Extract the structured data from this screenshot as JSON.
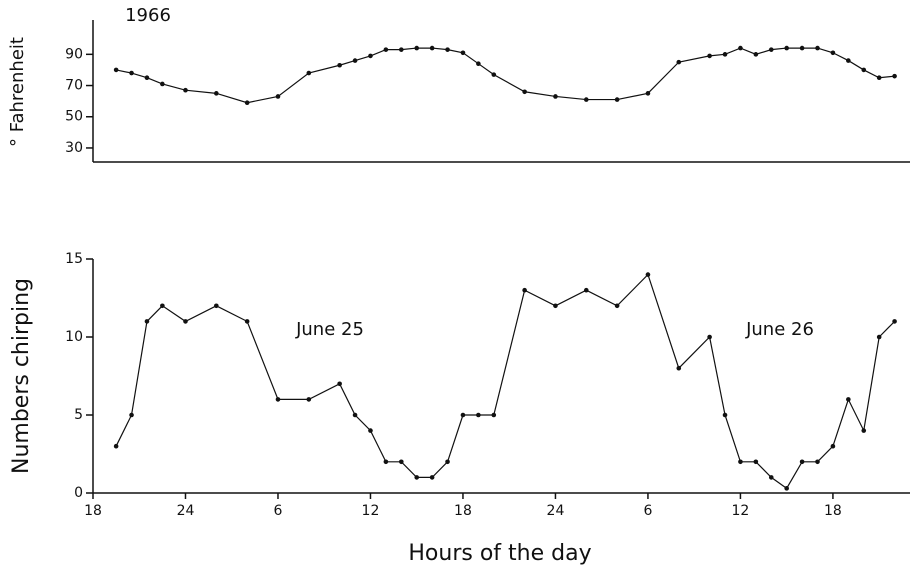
{
  "chart_data": [
    {
      "type": "line",
      "title": "1966",
      "ylabel": "° Fahrenheit",
      "color": "#111",
      "x": [
        19.5,
        20.5,
        21.5,
        22.5,
        24,
        26,
        28,
        30,
        32,
        34,
        35,
        36,
        37,
        38,
        39,
        40,
        41,
        42,
        43,
        44,
        46,
        48,
        50,
        52,
        54,
        56,
        58,
        59,
        60,
        61,
        62,
        63,
        64,
        65,
        66,
        67,
        68,
        69,
        70
      ],
      "values": [
        80,
        78,
        75,
        71,
        67,
        65,
        59,
        63,
        78,
        83,
        86,
        89,
        93,
        93,
        94,
        94,
        93,
        91,
        84,
        77,
        66,
        63,
        61,
        61,
        65,
        85,
        89,
        90,
        94,
        90,
        93,
        94,
        94,
        94,
        91,
        86,
        80,
        75,
        76
      ],
      "xlim": [
        18,
        71
      ],
      "ylim": [
        21,
        112
      ],
      "yticks": [
        30,
        50,
        70,
        90
      ]
    },
    {
      "type": "line",
      "ylabel": "Numbers chirping",
      "xlabel": "Hours of the day",
      "color": "#111",
      "annotations": [
        "June 25",
        "June 26"
      ],
      "x": [
        19.5,
        20.5,
        21.5,
        22.5,
        24,
        26,
        28,
        30,
        32,
        34,
        35,
        36,
        37,
        38,
        39,
        40,
        41,
        42,
        43,
        44,
        46,
        48,
        50,
        52,
        54,
        56,
        58,
        59,
        60,
        61,
        62,
        63,
        64,
        65,
        66,
        67,
        68,
        69,
        70
      ],
      "values": [
        3,
        5,
        11,
        12,
        11,
        12,
        11,
        6,
        6,
        7,
        5,
        4,
        2,
        2,
        1,
        1,
        2,
        5,
        5,
        5,
        13,
        12,
        13,
        12,
        14,
        8,
        10,
        5,
        2,
        2,
        1,
        0.3,
        2,
        2,
        3,
        6,
        4,
        10,
        11
      ],
      "xlim": [
        18,
        71
      ],
      "ylim": [
        0,
        15
      ],
      "yticks": [
        0,
        5,
        10,
        15
      ],
      "xticks": [
        18,
        24,
        {
          "value": 30,
          "label": "6"
        },
        {
          "value": 36,
          "label": "12"
        },
        {
          "value": 42,
          "label": "18"
        },
        {
          "value": 48,
          "label": "24"
        },
        {
          "value": 54,
          "label": "6"
        },
        {
          "value": 60,
          "label": "12"
        },
        {
          "value": 66,
          "label": "18"
        }
      ]
    }
  ]
}
